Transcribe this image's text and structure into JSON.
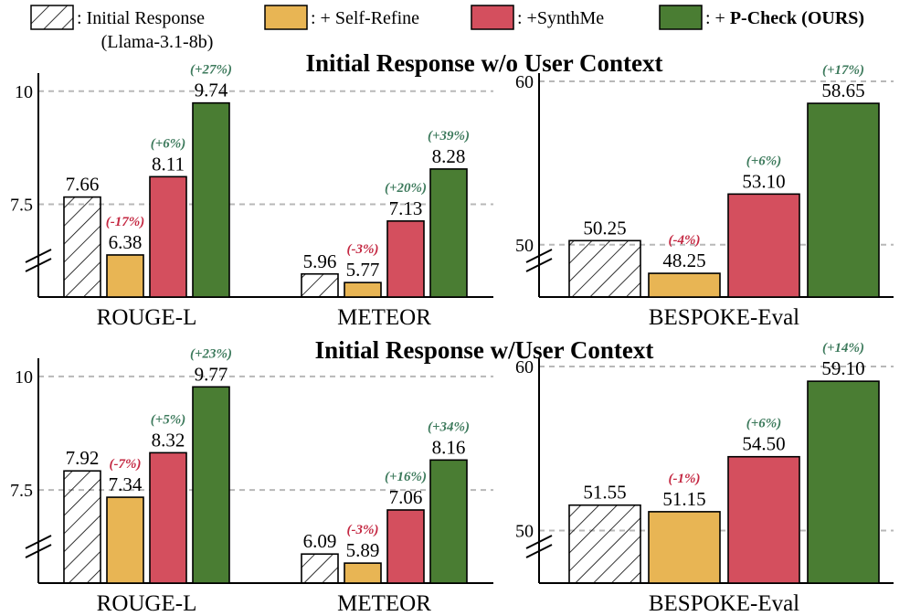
{
  "legend": [
    {
      "label": ": Initial Response",
      "sublabel": "(Llama-3.1-8b)",
      "style": "hatch",
      "color": "#ffffff",
      "bold": false
    },
    {
      "label": ": + Self-Refine",
      "style": "fill",
      "color": "#e8b554",
      "bold": false
    },
    {
      "label": ": +SynthMe",
      "style": "fill",
      "color": "#d44f5e",
      "bold": false
    },
    {
      "label_prefix": ": + ",
      "label": "P-Check (OURS)",
      "style": "fill",
      "color": "#4a7d33",
      "bold": true
    }
  ],
  "colors": {
    "positive": "#3d7a5c",
    "negative": "#c42842",
    "grid": "#b8b8b8"
  },
  "chart_data": [
    {
      "type": "bar",
      "title": "Initial Response w/o User Context",
      "panels": [
        {
          "id": "rouge-meteor",
          "ylim": [
            5.45,
            10.4
          ],
          "yticks": [
            {
              "value": 7.5,
              "label": "7.5"
            },
            {
              "value": 10,
              "label": "10"
            }
          ],
          "groups": [
            {
              "name": "ROUGE-L",
              "values": [
                7.66,
                6.38,
                8.11,
                9.74
              ],
              "labels": [
                "7.66",
                "6.38",
                "8.11",
                "9.74"
              ],
              "changes": [
                null,
                "(-17%)",
                "(+6%)",
                "(+27%)"
              ]
            },
            {
              "name": "METEOR",
              "values": [
                5.96,
                5.77,
                7.13,
                8.28
              ],
              "labels": [
                "5.96",
                "5.77",
                "7.13",
                "8.28"
              ],
              "changes": [
                null,
                "(-3%)",
                "(+20%)",
                "(+39%)"
              ]
            }
          ]
        },
        {
          "id": "bespoke",
          "ylim": [
            46.8,
            60.5
          ],
          "yticks": [
            {
              "value": 50,
              "label": "50"
            },
            {
              "value": 60,
              "label": "60"
            }
          ],
          "groups": [
            {
              "name": "BESPOKE-Eval",
              "values": [
                50.25,
                48.25,
                53.1,
                58.65
              ],
              "labels": [
                "50.25",
                "48.25",
                "53.10",
                "58.65"
              ],
              "changes": [
                null,
                "(-4%)",
                "(+6%)",
                "(+17%)"
              ]
            }
          ]
        }
      ]
    },
    {
      "type": "bar",
      "title": "Initial Response w/User Context",
      "panels": [
        {
          "id": "rouge-meteor",
          "ylim": [
            5.45,
            10.4
          ],
          "yticks": [
            {
              "value": 7.5,
              "label": "7.5"
            },
            {
              "value": 10,
              "label": "10"
            }
          ],
          "groups": [
            {
              "name": "ROUGE-L",
              "values": [
                7.92,
                7.34,
                8.32,
                9.77
              ],
              "labels": [
                "7.92",
                "7.34",
                "8.32",
                "9.77"
              ],
              "changes": [
                null,
                "(-7%)",
                "(+5%)",
                "(+23%)"
              ]
            },
            {
              "name": "METEOR",
              "values": [
                6.09,
                5.89,
                7.06,
                8.16
              ],
              "labels": [
                "6.09",
                "5.89",
                "7.06",
                "8.16"
              ],
              "changes": [
                null,
                "(-3%)",
                "(+16%)",
                "(+34%)"
              ]
            }
          ]
        },
        {
          "id": "bespoke",
          "ylim": [
            46.8,
            60.5
          ],
          "yticks": [
            {
              "value": 50,
              "label": "50"
            },
            {
              "value": 60,
              "label": "60"
            }
          ],
          "groups": [
            {
              "name": "BESPOKE-Eval",
              "values": [
                51.55,
                51.15,
                54.5,
                59.1
              ],
              "labels": [
                "51.55",
                "51.15",
                "54.50",
                "59.10"
              ],
              "changes": [
                null,
                "(-1%)",
                "(+6%)",
                "(+14%)"
              ]
            }
          ]
        }
      ]
    }
  ]
}
